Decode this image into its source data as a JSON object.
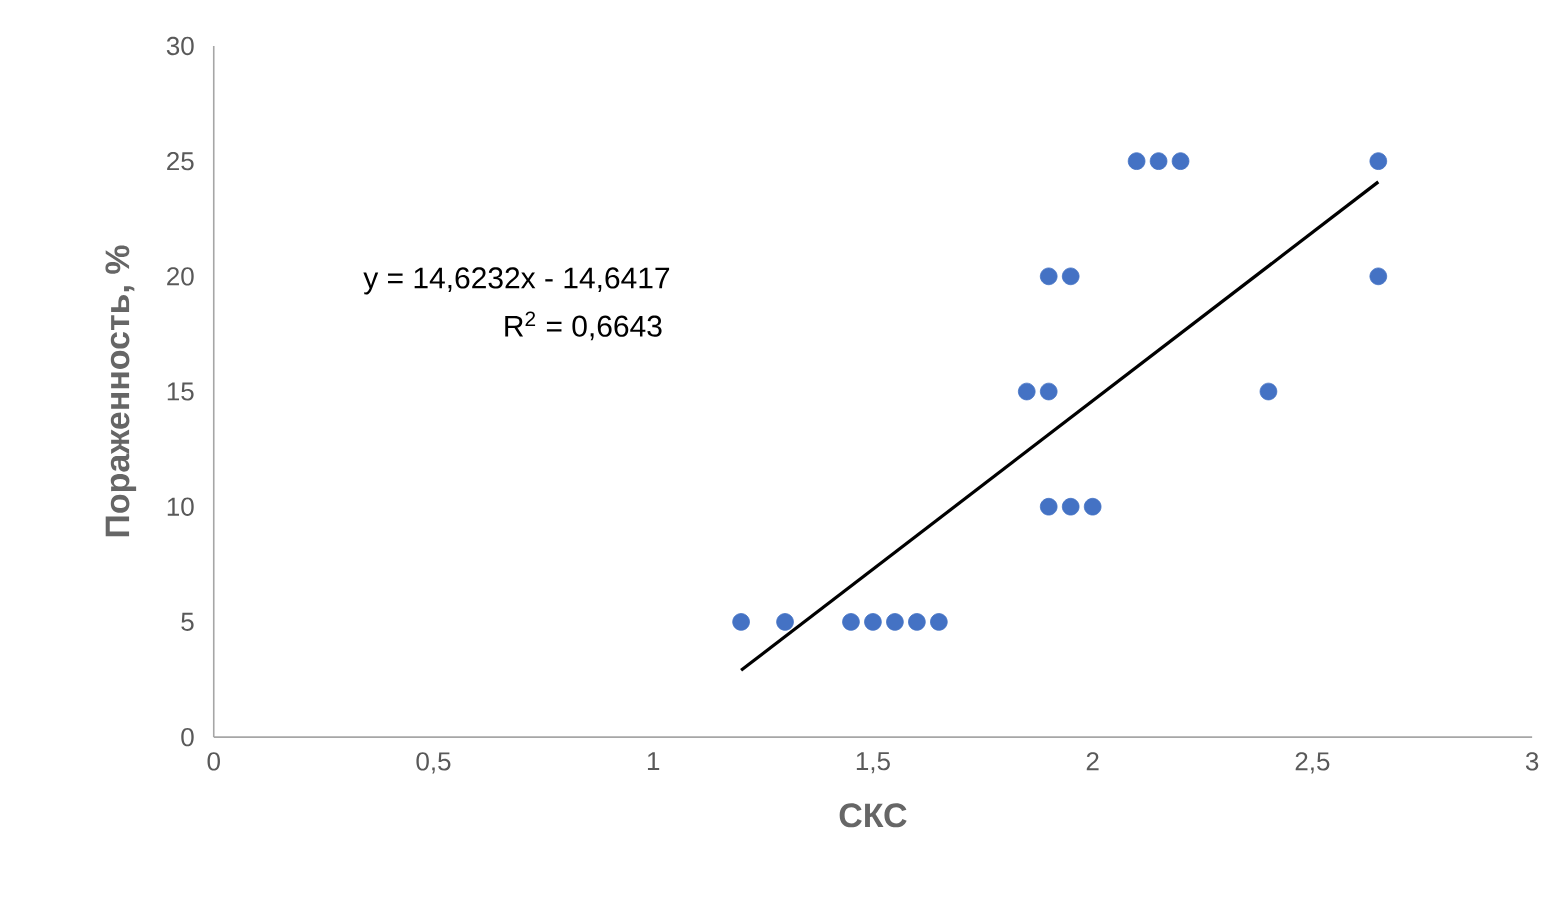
{
  "chart_data": {
    "type": "scatter",
    "xlabel": "СКС",
    "ylabel": "Пораженность, %",
    "annotations": [
      "y = 14,6232x - 14,6417",
      "R$^{2}$ = 0,6643"
    ],
    "xlim": [
      0,
      3
    ],
    "ylim": [
      0,
      30
    ],
    "xticks": [
      0,
      {
        "value": 0.5,
        "label": "0,5"
      },
      1,
      {
        "value": 1.5,
        "label": "1,5"
      },
      2,
      {
        "value": 2.5,
        "label": "2,5"
      },
      3
    ],
    "yticks": [
      0,
      5,
      10,
      15,
      20,
      25,
      30
    ],
    "grid": false,
    "series": [
      {
        "color": "#4472c4",
        "marker": "circle",
        "x": [
          1.2,
          1.3,
          1.45,
          1.5,
          1.55,
          1.6,
          1.65,
          1.9,
          1.95,
          2.0,
          1.85,
          1.9,
          1.9,
          1.95,
          2.1,
          2.15,
          2.2,
          2.4,
          2.65,
          2.65
        ],
        "values": [
          5,
          5,
          5,
          5,
          5,
          5,
          5,
          10,
          10,
          10,
          15,
          15,
          20,
          20,
          25,
          25,
          25,
          15,
          25,
          20
        ]
      },
      {
        "type": "line",
        "color": "#000000",
        "line_style": "solid",
        "marker": "none",
        "x": [
          1.2,
          2.65
        ],
        "values": [
          2.9,
          24.1
        ]
      }
    ]
  }
}
